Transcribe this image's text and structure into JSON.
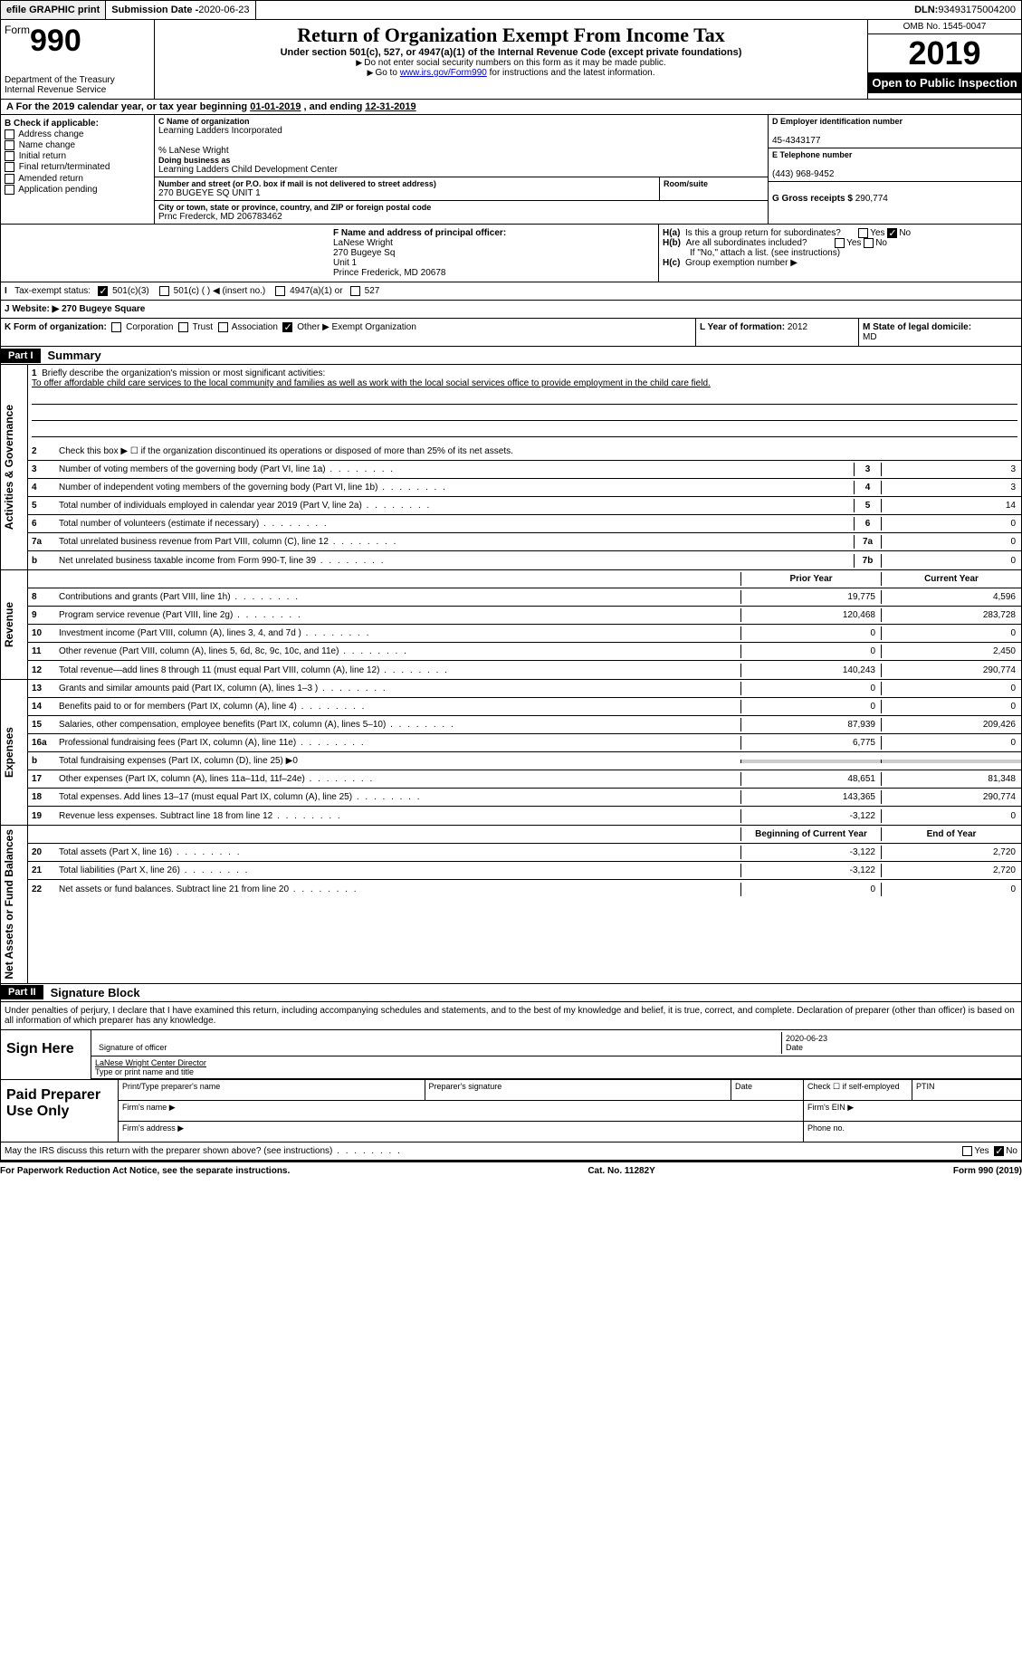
{
  "top": {
    "efile": "efile GRAPHIC print",
    "submission_label": "Submission Date - ",
    "submission_date": "2020-06-23",
    "dln_label": "DLN: ",
    "dln": "93493175004200"
  },
  "header": {
    "form_prefix": "Form",
    "form_number": "990",
    "dept": "Department of the Treasury\nInternal Revenue Service",
    "title": "Return of Organization Exempt From Income Tax",
    "subtitle": "Under section 501(c), 527, or 4947(a)(1) of the Internal Revenue Code (except private foundations)",
    "instruct1": "Do not enter social security numbers on this form as it may be made public.",
    "instruct2_pre": "Go to ",
    "instruct2_link": "www.irs.gov/Form990",
    "instruct2_post": " for instructions and the latest information.",
    "omb": "OMB No. 1545-0047",
    "year": "2019",
    "open": "Open to Public Inspection"
  },
  "section_a": {
    "text_pre": "For the 2019 calendar year, or tax year beginning ",
    "begin": "01-01-2019",
    "mid": " , and ending ",
    "end": "12-31-2019"
  },
  "section_b": {
    "label": "B Check if applicable:",
    "items": [
      "Address change",
      "Name change",
      "Initial return",
      "Final return/terminated",
      "Amended return",
      "Application pending"
    ]
  },
  "section_c": {
    "label": "C Name of organization",
    "org": "Learning Ladders Incorporated",
    "care_of": "% LaNese Wright",
    "dba_label": "Doing business as",
    "dba": "Learning Ladders Child Development Center",
    "street_label": "Number and street (or P.O. box if mail is not delivered to street address)",
    "street": "270 BUGEYE SQ UNIT 1",
    "room_label": "Room/suite",
    "city_label": "City or town, state or province, country, and ZIP or foreign postal code",
    "city": "Prnc Frederck, MD  206783462"
  },
  "section_d": {
    "label": "D Employer identification number",
    "value": "45-4343177"
  },
  "section_e": {
    "label": "E Telephone number",
    "value": "(443) 968-9452"
  },
  "section_g": {
    "label": "G Gross receipts $ ",
    "value": "290,774"
  },
  "section_f": {
    "label": "F Name and address of principal officer:",
    "name": "LaNese Wright",
    "addr1": "270 Bugeye Sq",
    "addr2": "Unit 1",
    "addr3": "Prince Frederick, MD  20678"
  },
  "section_h": {
    "a": "Is this a group return for subordinates?",
    "b": "Are all subordinates included?",
    "note": "If \"No,\" attach a list. (see instructions)",
    "c": "Group exemption number ▶"
  },
  "section_i": {
    "label": "Tax-exempt status:",
    "opts": [
      "501(c)(3)",
      "501(c) (    ) ◀ (insert no.)",
      "4947(a)(1) or",
      "527"
    ]
  },
  "section_j": {
    "label": "J   Website: ▶ ",
    "value": "270 Bugeye Square"
  },
  "section_k": {
    "label": "K Form of organization:",
    "opts": [
      "Corporation",
      "Trust",
      "Association",
      "Other"
    ],
    "other_text": "▶ Exempt Organization",
    "l_label": "L Year of formation: ",
    "l_value": "2012",
    "m_label": "M State of legal domicile:",
    "m_value": "MD"
  },
  "part1": {
    "header": "Part I",
    "title": "Summary",
    "line1_label": "Briefly describe the organization's mission or most significant activities:",
    "mission": "To offer affordable child care services to the local community and families as well as work with the local social services office to provide employment in the child care field.",
    "line2": "Check this box ▶ ☐  if the organization discontinued its operations or disposed of more than 25% of its net assets.",
    "governance_label": "Activities & Governance",
    "revenue_label": "Revenue",
    "expenses_label": "Expenses",
    "netassets_label": "Net Assets or Fund Balances",
    "rows_gov": [
      {
        "n": "3",
        "t": "Number of voting members of the governing body (Part VI, line 1a)",
        "box": "3",
        "v": "3"
      },
      {
        "n": "4",
        "t": "Number of independent voting members of the governing body (Part VI, line 1b)",
        "box": "4",
        "v": "3"
      },
      {
        "n": "5",
        "t": "Total number of individuals employed in calendar year 2019 (Part V, line 2a)",
        "box": "5",
        "v": "14"
      },
      {
        "n": "6",
        "t": "Total number of volunteers (estimate if necessary)",
        "box": "6",
        "v": "0"
      },
      {
        "n": "7a",
        "t": "Total unrelated business revenue from Part VIII, column (C), line 12",
        "box": "7a",
        "v": "0"
      },
      {
        "n": "b",
        "t": "Net unrelated business taxable income from Form 990-T, line 39",
        "box": "7b",
        "v": "0"
      }
    ],
    "col_py": "Prior Year",
    "col_cy": "Current Year",
    "rows_rev": [
      {
        "n": "8",
        "t": "Contributions and grants (Part VIII, line 1h)",
        "py": "19,775",
        "cy": "4,596"
      },
      {
        "n": "9",
        "t": "Program service revenue (Part VIII, line 2g)",
        "py": "120,468",
        "cy": "283,728"
      },
      {
        "n": "10",
        "t": "Investment income (Part VIII, column (A), lines 3, 4, and 7d )",
        "py": "0",
        "cy": "0"
      },
      {
        "n": "11",
        "t": "Other revenue (Part VIII, column (A), lines 5, 6d, 8c, 9c, 10c, and 11e)",
        "py": "0",
        "cy": "2,450"
      },
      {
        "n": "12",
        "t": "Total revenue—add lines 8 through 11 (must equal Part VIII, column (A), line 12)",
        "py": "140,243",
        "cy": "290,774"
      }
    ],
    "rows_exp": [
      {
        "n": "13",
        "t": "Grants and similar amounts paid (Part IX, column (A), lines 1–3 )",
        "py": "0",
        "cy": "0"
      },
      {
        "n": "14",
        "t": "Benefits paid to or for members (Part IX, column (A), line 4)",
        "py": "0",
        "cy": "0"
      },
      {
        "n": "15",
        "t": "Salaries, other compensation, employee benefits (Part IX, column (A), lines 5–10)",
        "py": "87,939",
        "cy": "209,426"
      },
      {
        "n": "16a",
        "t": "Professional fundraising fees (Part IX, column (A), line 11e)",
        "py": "6,775",
        "cy": "0"
      },
      {
        "n": "b",
        "t": "Total fundraising expenses (Part IX, column (D), line 25) ▶0",
        "py": "",
        "cy": "",
        "shaded": true
      },
      {
        "n": "17",
        "t": "Other expenses (Part IX, column (A), lines 11a–11d, 11f–24e)",
        "py": "48,651",
        "cy": "81,348"
      },
      {
        "n": "18",
        "t": "Total expenses. Add lines 13–17 (must equal Part IX, column (A), line 25)",
        "py": "143,365",
        "cy": "290,774"
      },
      {
        "n": "19",
        "t": "Revenue less expenses. Subtract line 18 from line 12",
        "py": "-3,122",
        "cy": "0"
      }
    ],
    "col_boy": "Beginning of Current Year",
    "col_eoy": "End of Year",
    "rows_net": [
      {
        "n": "20",
        "t": "Total assets (Part X, line 16)",
        "py": "-3,122",
        "cy": "2,720"
      },
      {
        "n": "21",
        "t": "Total liabilities (Part X, line 26)",
        "py": "-3,122",
        "cy": "2,720"
      },
      {
        "n": "22",
        "t": "Net assets or fund balances. Subtract line 21 from line 20",
        "py": "0",
        "cy": "0"
      }
    ]
  },
  "part2": {
    "header": "Part II",
    "title": "Signature Block",
    "perjury": "Under penalties of perjury, I declare that I have examined this return, including accompanying schedules and statements, and to the best of my knowledge and belief, it is true, correct, and complete. Declaration of preparer (other than officer) is based on all information of which preparer has any knowledge.",
    "sign_here": "Sign Here",
    "sig_officer": "Signature of officer",
    "sig_date": "2020-06-23",
    "date_label": "Date",
    "officer_name": "LaNese Wright Center Director",
    "type_name": "Type or print name and title",
    "paid_prep": "Paid Preparer Use Only",
    "prep_name": "Print/Type preparer's name",
    "prep_sig": "Preparer's signature",
    "prep_date": "Date",
    "prep_check": "Check ☐ if self-employed",
    "ptin": "PTIN",
    "firm_name": "Firm's name    ▶",
    "firm_ein": "Firm's EIN ▶",
    "firm_addr": "Firm's address ▶",
    "phone": "Phone no.",
    "irs_discuss": "May the IRS discuss this return with the preparer shown above? (see instructions)"
  },
  "footer": {
    "paperwork": "For Paperwork Reduction Act Notice, see the separate instructions.",
    "cat": "Cat. No. 11282Y",
    "form": "Form 990 (2019)"
  }
}
